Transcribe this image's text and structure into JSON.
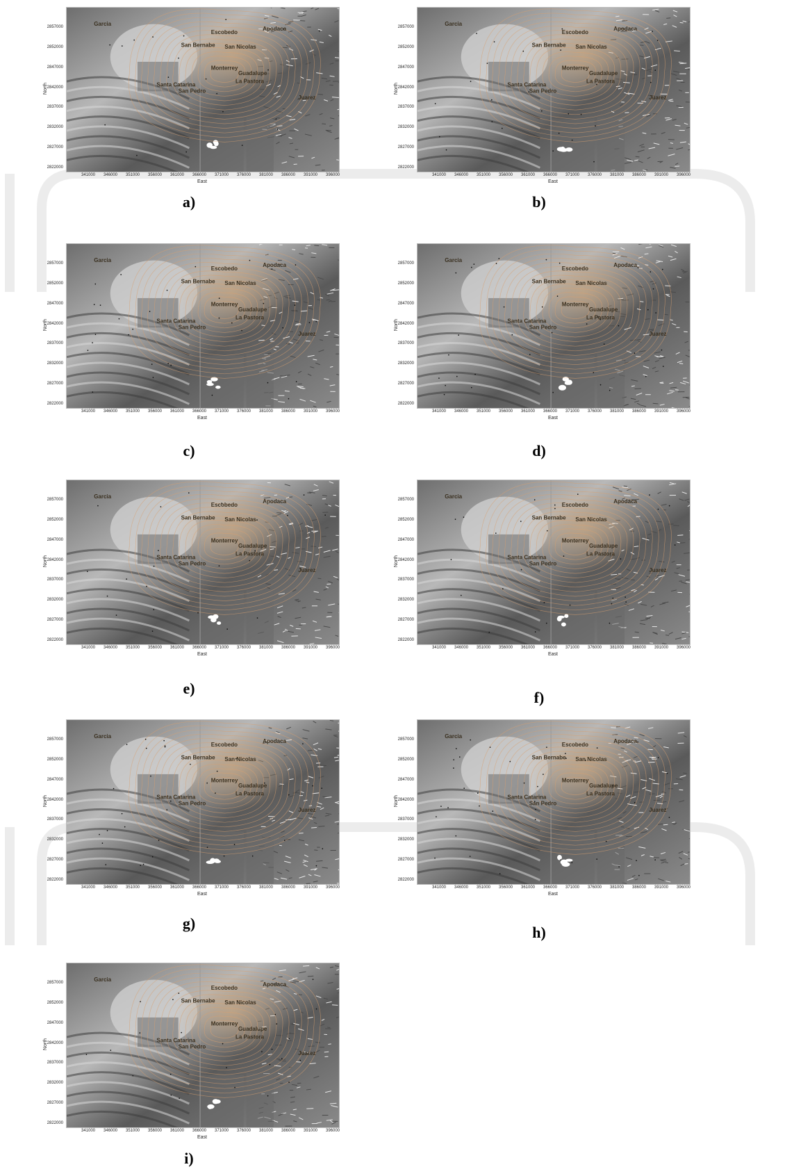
{
  "axes": {
    "xlabel": "East",
    "ylabel": "North",
    "x_ticks": [
      "341000",
      "346000",
      "351000",
      "356000",
      "361000",
      "366000",
      "371000",
      "376000",
      "381000",
      "386000",
      "391000",
      "396000"
    ],
    "y_ticks": [
      "2857000",
      "2852000",
      "2847000",
      "2842000",
      "2837000",
      "2832000",
      "2827000",
      "2822000"
    ]
  },
  "towns": [
    "Escobedo",
    "Apodaca",
    "San Bernabe",
    "San Nicolas",
    "Monterrey",
    "Guadalupe",
    "Santa Catarina",
    "San Pedro",
    "La Pastora",
    "Juarez",
    "Garcia"
  ],
  "panels": [
    {
      "id": "a",
      "label": "a)"
    },
    {
      "id": "b",
      "label": "b)"
    },
    {
      "id": "c",
      "label": "c)"
    },
    {
      "id": "d",
      "label": "d)"
    },
    {
      "id": "e",
      "label": "e)"
    },
    {
      "id": "f",
      "label": "f)"
    },
    {
      "id": "g",
      "label": "g)"
    },
    {
      "id": "h",
      "label": "h)"
    },
    {
      "id": "i",
      "label": "i)"
    }
  ],
  "colors": {
    "terrain_dark": "#5a5a5a",
    "terrain_light": "#cfcfcf",
    "urban": "#c9a985",
    "contour": "#d9a070"
  }
}
